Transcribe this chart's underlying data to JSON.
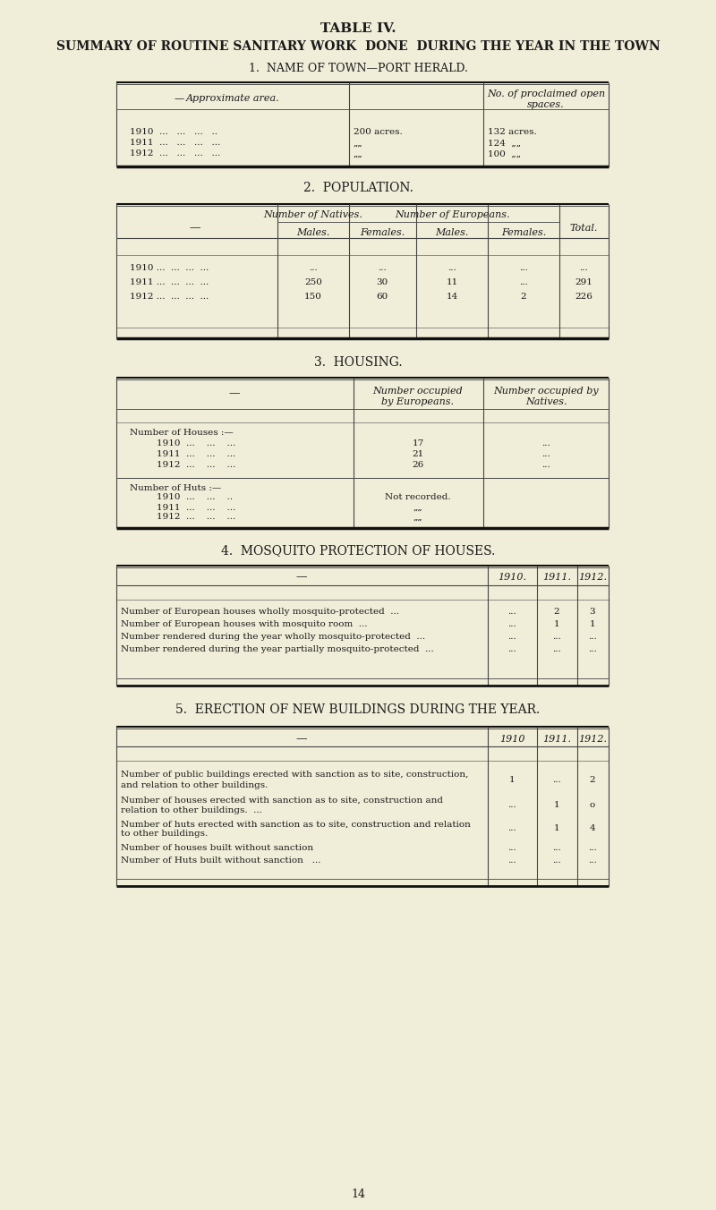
{
  "bg_color": "#f0edd8",
  "text_color": "#1a1a1a",
  "title1": "TABLE IV.",
  "title2": "SUMMARY OF ROUTINE SANITARY WORK  DONE  DURING THE YEAR IN THE TOWN",
  "section1_title": "1.  NAME OF TOWN—PORT HERALD.",
  "section2_title": "2.  POPULATION.",
  "section3_title": "3.  HOUSING.",
  "section4_title": "4.  MOSQUITO PROTECTION OF HOUSES.",
  "section5_title": "5.  ERECTION OF NEW BUILDINGS DURING THE YEAR.",
  "footer": "14",
  "line_color": "#444444",
  "thick_line_color": "#111111"
}
